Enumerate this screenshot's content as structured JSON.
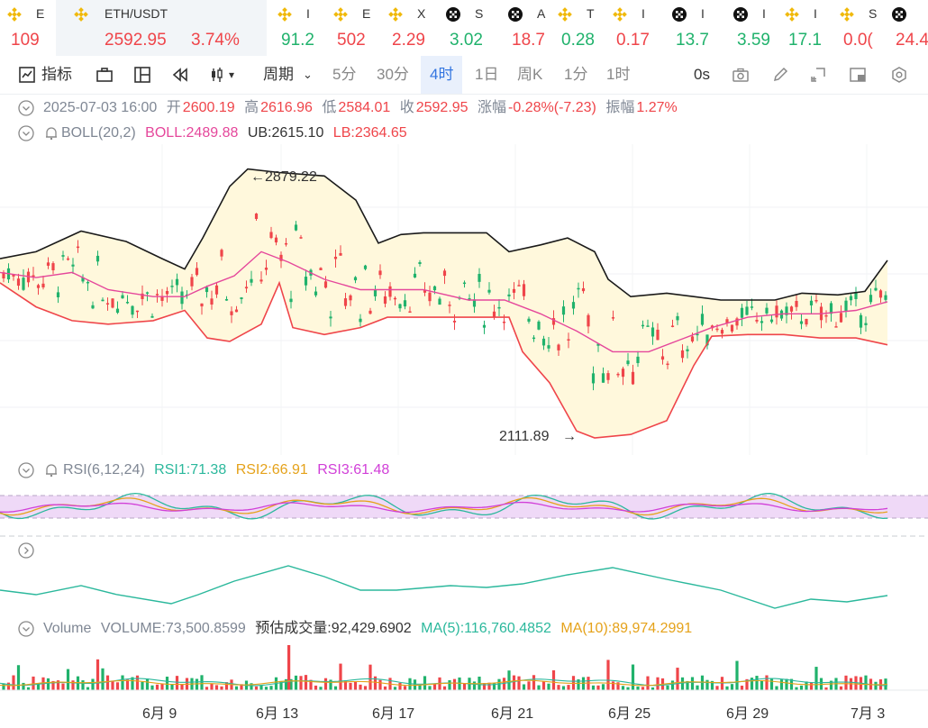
{
  "ticker": [
    {
      "name": "E",
      "value": "109",
      "color": "neg",
      "icon": "binance-logo-icon"
    },
    {
      "name": "ETH/USDT",
      "value": "2592.95",
      "change": "3.74%",
      "color": "neg",
      "icon": "binance-logo-icon",
      "active": true
    },
    {
      "name": "I",
      "value": "91.2",
      "color": "pos",
      "icon": "binance-logo-icon"
    },
    {
      "name": "E",
      "value": "502",
      "color": "neg",
      "icon": "binance-logo-icon"
    },
    {
      "name": "X",
      "value": "2.29",
      "color": "neg",
      "icon": "binance-logo-icon"
    },
    {
      "name": "S",
      "value": "3.02",
      "color": "pos",
      "icon": "okx-logo-icon"
    },
    {
      "name": "A",
      "value": "18.7",
      "color": "neg",
      "icon": "okx-logo-icon"
    },
    {
      "name": "T",
      "value": "0.28",
      "color": "pos",
      "icon": "binance-logo-icon"
    },
    {
      "name": "I",
      "value": "0.17",
      "color": "neg",
      "icon": "binance-logo-icon"
    },
    {
      "name": "I",
      "value": "13.7",
      "color": "pos",
      "icon": "okx-logo-icon"
    },
    {
      "name": "I",
      "value": "3.59",
      "color": "pos",
      "icon": "okx-logo-icon"
    },
    {
      "name": "I",
      "value": "17.1",
      "color": "pos",
      "icon": "binance-logo-icon"
    },
    {
      "name": "S",
      "value": "0.0(",
      "color": "neg",
      "icon": "binance-logo-icon"
    },
    {
      "name": "",
      "value": "24.4",
      "color": "neg",
      "icon": "okx-logo-icon"
    }
  ],
  "toolbar": {
    "indicator": "指标",
    "period": "周期",
    "intervals": [
      "5分",
      "30分",
      "4时",
      "1日",
      "周K",
      "1分",
      "1时"
    ],
    "selected_interval": "4时",
    "countdown": "0s"
  },
  "ohlc": {
    "date": "2025-07-03 16:00",
    "open_label": "开",
    "open": "2600.19",
    "high_label": "高",
    "high": "2616.96",
    "low_label": "低",
    "low": "2584.01",
    "close_label": "收",
    "close": "2592.95",
    "change_label": "涨幅",
    "change": "-0.28%(-7.23)",
    "amp_label": "振幅",
    "amp": "1.27%"
  },
  "boll": {
    "name": "BOLL(20,2)",
    "mid": "BOLL:2489.88",
    "ub": "UB:2615.10",
    "lb": "LB:2364.65"
  },
  "annotations": {
    "high": "2879.22",
    "low": "2111.89"
  },
  "rsi": {
    "name": "RSI(6,12,24)",
    "rsi1": "RSI1:71.38",
    "rsi2": "RSI2:66.91",
    "rsi3": "RSI3:61.48"
  },
  "volume": {
    "name": "Volume",
    "vol": "VOLUME:73,500.8599",
    "est": "预估成交量:92,429.6902",
    "ma5": "MA(5):116,760.4852",
    "ma10": "MA(10):89,974.2991"
  },
  "colors": {
    "up": "#20b26c",
    "down": "#ef454a",
    "ub": "#1a1a1a",
    "lb": "#ef454a",
    "mid": "#e5479b",
    "band": "#fff8dc",
    "rsi1": "#2bb89c",
    "rsi2": "#e5a21a",
    "rsi3": "#d13fd8"
  },
  "chart_data": {
    "type": "line",
    "x": [
      "6月 9",
      "6月 13",
      "6月 17",
      "6月 21",
      "6月 25",
      "6月 29",
      "7月 3"
    ],
    "series": [
      {
        "name": "UB",
        "values": [
          2730,
          2879,
          2600,
          2620,
          2500,
          2520,
          2615
        ]
      },
      {
        "name": "BOLL",
        "values": [
          2560,
          2720,
          2500,
          2470,
          2310,
          2460,
          2490
        ]
      },
      {
        "name": "LB",
        "values": [
          2400,
          2430,
          2430,
          2400,
          2111,
          2390,
          2365
        ]
      }
    ]
  }
}
